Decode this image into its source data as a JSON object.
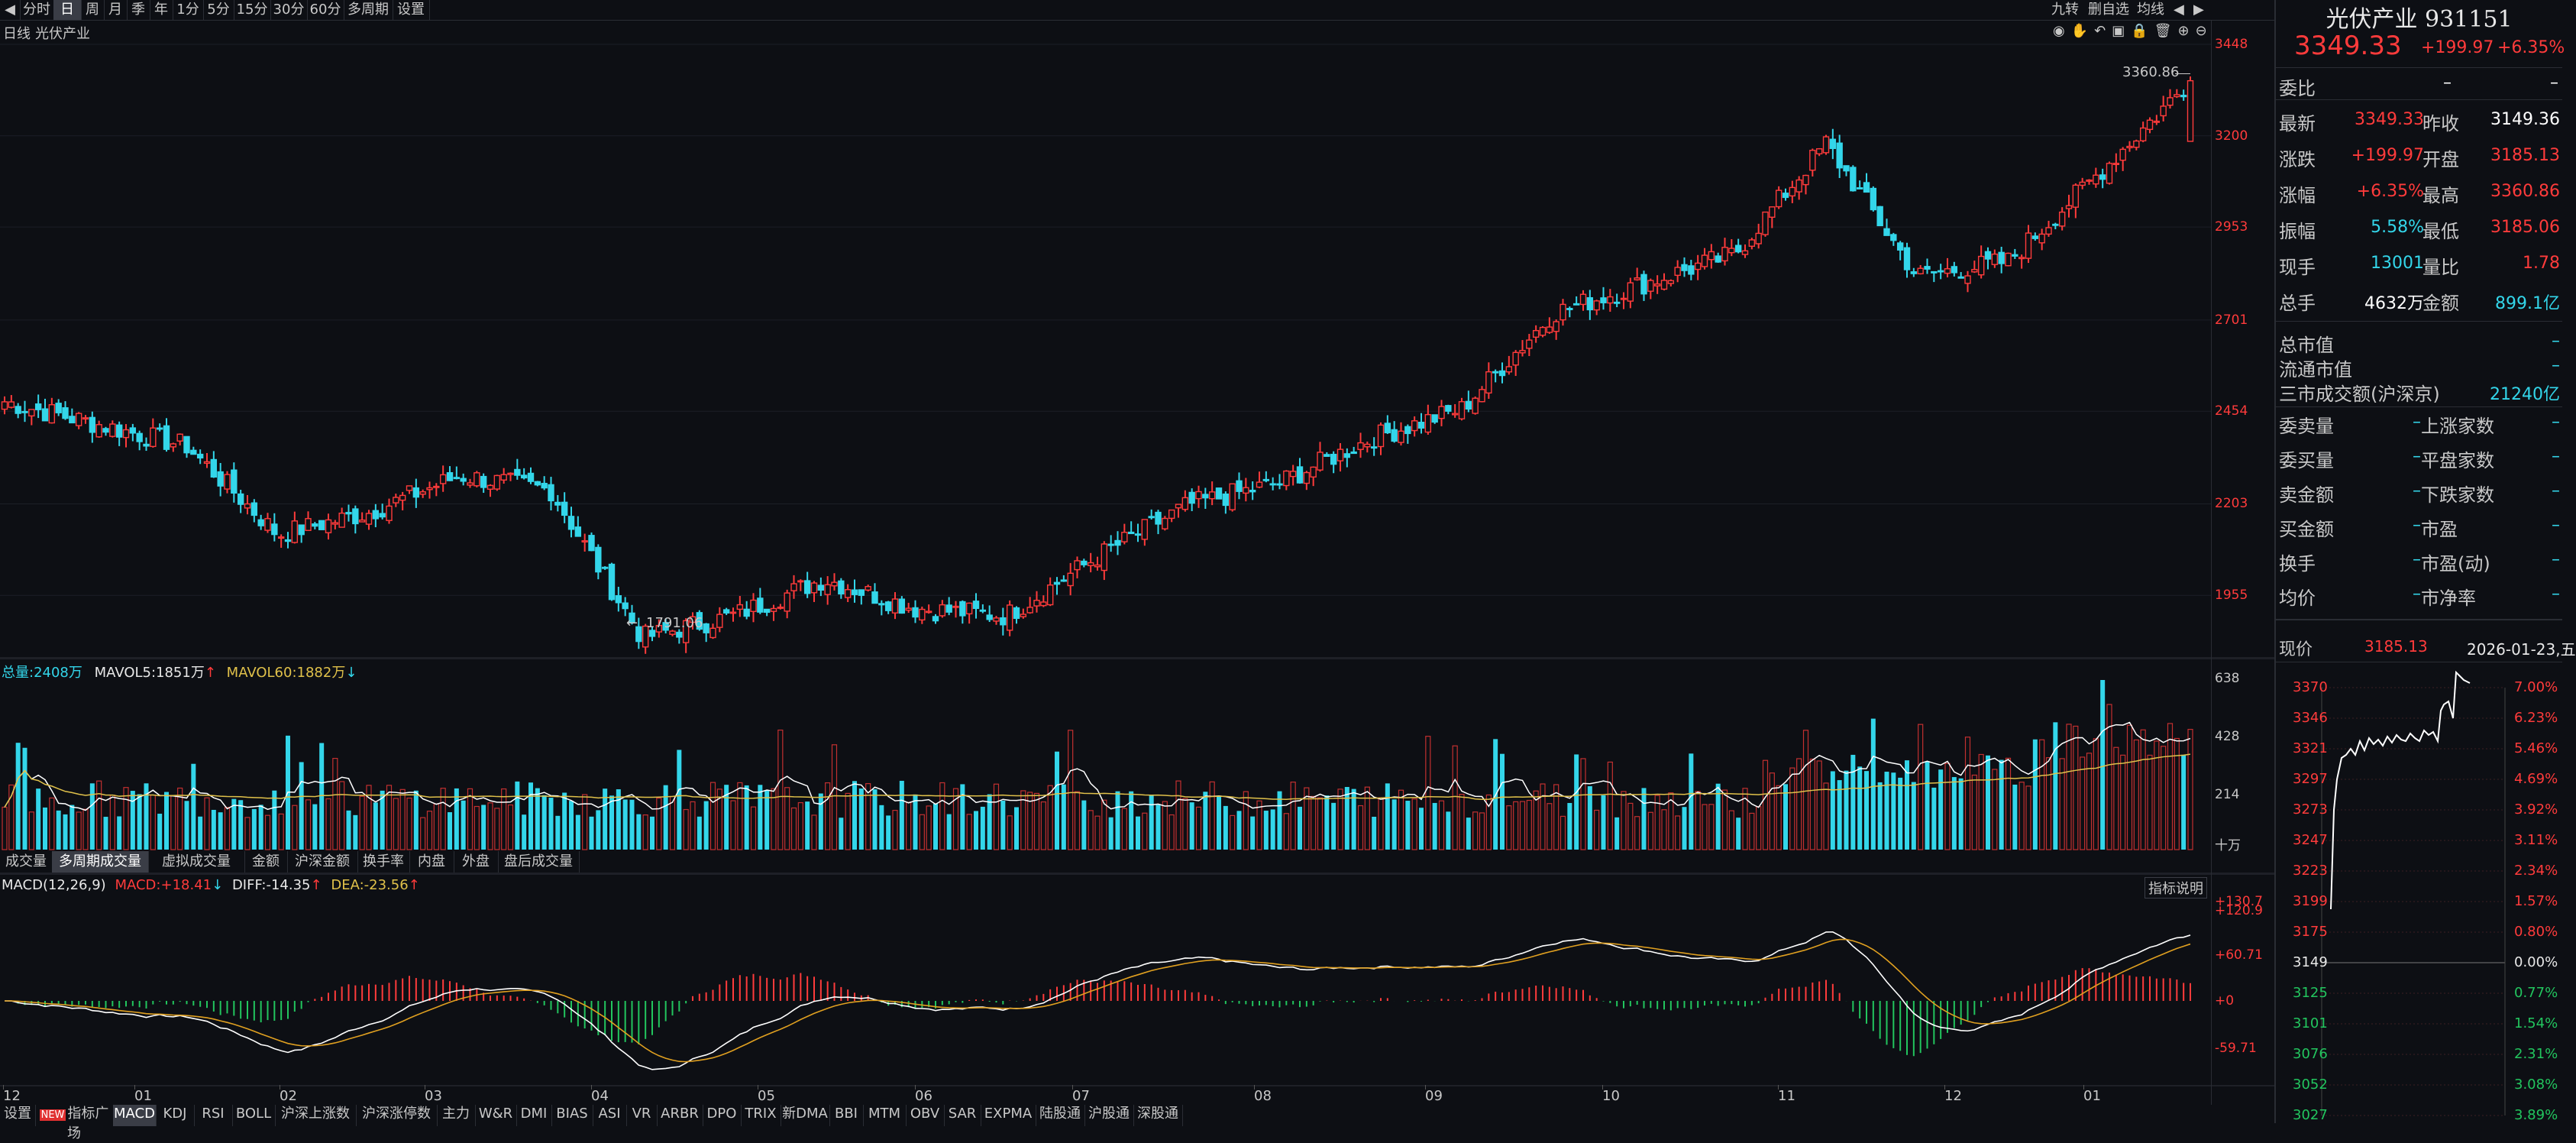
{
  "topbar": {
    "periods": [
      "分时",
      "日",
      "周",
      "月",
      "季",
      "年",
      "1分",
      "5分",
      "15分",
      "30分",
      "60分",
      "多周期",
      "设置"
    ],
    "active_period": "日",
    "right_items": [
      "九转",
      "删自选",
      "均线"
    ]
  },
  "chart": {
    "period_label": "日线",
    "name": "光伏产业",
    "max_annot": "3360.86",
    "min_annot": "1791.06",
    "price_ticks": [
      "3448",
      "3200",
      "2953",
      "2701",
      "2454",
      "2203",
      "1955"
    ],
    "volume_header": {
      "total_label": "总量:",
      "total_val": "2408万",
      "mavol5_label": "MAVOL5:",
      "mavol5_val": "1851万",
      "mavol60_label": "MAVOL60:",
      "mavol60_val": "1882万"
    },
    "volume_ticks": [
      "638",
      "428",
      "214"
    ],
    "volume_unit": "十万",
    "volume_tabs": [
      "成交量",
      "多周期成交量",
      "虚拟成交量",
      "金额",
      "沪深金额",
      "换手率",
      "内盘",
      "外盘",
      "盘后成交量"
    ],
    "volume_tab_active": "多周期成交量",
    "macd_header": {
      "title": "MACD(12,26,9)",
      "macd_label": "MACD:",
      "macd_val": "+18.41",
      "diff_label": "DIFF:",
      "diff_val": "-14.35",
      "dea_label": "DEA:",
      "dea_val": "-23.56"
    },
    "macd_help": "指标说明",
    "macd_ticks": [
      "+130.7",
      "+120.9",
      "+60.71",
      "+0",
      "-59.71"
    ],
    "months": [
      "12",
      "01",
      "02",
      "03",
      "04",
      "05",
      "06",
      "07",
      "08",
      "09",
      "10",
      "11",
      "12",
      "01"
    ],
    "indicator_tabs": [
      "设置",
      "指标广场",
      "MACD",
      "KDJ",
      "RSI",
      "BOLL",
      "沪深上涨数",
      "沪深涨停数",
      "主力",
      "W&R",
      "DMI",
      "BIAS",
      "ASI",
      "VR",
      "ARBR",
      "DPO",
      "TRIX",
      "新DMA",
      "BBI",
      "MTM",
      "OBV",
      "SAR",
      "EXPMA",
      "陆股通",
      "沪股通",
      "深股通"
    ],
    "indicator_active": "MACD",
    "new_badge": "NEW",
    "colors": {
      "up": "#ff3b3b",
      "down": "#33d6ea",
      "bg": "#0d0f14"
    }
  },
  "chart_data": {
    "type": "candlestick",
    "x": [
      "12",
      "01",
      "02",
      "03",
      "04",
      "05",
      "06",
      "07",
      "08",
      "09",
      "10",
      "11",
      "12",
      "01"
    ],
    "close_anchors": [
      2480,
      2420,
      2360,
      2120,
      2180,
      2280,
      2240,
      1840,
      1900,
      2000,
      1920,
      1900,
      2060,
      2200,
      2260,
      2380,
      2460,
      2720,
      2800,
      2880,
      3180,
      2820,
      2860,
      3100,
      3349
    ]
  },
  "quote": {
    "title": "光伏产业 931151",
    "price": "3349.33",
    "change": "+199.97",
    "change_pct": "+6.35%",
    "weibi_label": "委比",
    "weibi_val": "–",
    "weibi_val2": "–",
    "rows": [
      {
        "l1": "最新",
        "v1": "3349.33",
        "c1": "red",
        "l2": "昨收",
        "v2": "3149.36",
        "c2": "white"
      },
      {
        "l1": "涨跌",
        "v1": "+199.97",
        "c1": "red",
        "l2": "开盘",
        "v2": "3185.13",
        "c2": "red"
      },
      {
        "l1": "涨幅",
        "v1": "+6.35%",
        "c1": "red",
        "l2": "最高",
        "v2": "3360.86",
        "c2": "red"
      },
      {
        "l1": "振幅",
        "v1": "5.58%",
        "c1": "cyan",
        "l2": "最低",
        "v2": "3185.06",
        "c2": "red"
      },
      {
        "l1": "现手",
        "v1": "13001",
        "c1": "cyan",
        "l2": "量比",
        "v2": "1.78",
        "c2": "red"
      },
      {
        "l1": "总手",
        "v1": "4632万",
        "c1": "white",
        "l2": "金额",
        "v2": "899.1亿",
        "c2": "cyan"
      }
    ],
    "rows2": [
      {
        "l": "总市值",
        "v": "–",
        "c": "cyan"
      },
      {
        "l": "流通市值",
        "v": "–",
        "c": "cyan"
      },
      {
        "l": "三市成交额(沪深京)",
        "v": "21240亿",
        "c": "cyan"
      }
    ],
    "rows3": [
      {
        "l1": "委卖量",
        "v1": "–",
        "l2": "上涨家数",
        "v2": "–"
      },
      {
        "l1": "委买量",
        "v1": "–",
        "l2": "平盘家数",
        "v2": "–"
      },
      {
        "l1": "卖金额",
        "v1": "–",
        "l2": "下跌家数",
        "v2": "–"
      },
      {
        "l1": "买金额",
        "v1": "–",
        "l2": "市盈",
        "v2": "–"
      },
      {
        "l1": "换手",
        "v1": "–",
        "l2": "市盈(动)",
        "v2": "–"
      },
      {
        "l1": "均价",
        "v1": "–",
        "l2": "市净率",
        "v2": "–"
      }
    ],
    "now_label": "现价",
    "now_val": "3185.13",
    "date": "2026-01-23,五",
    "mini_left": [
      "3370",
      "3346",
      "3321",
      "3297",
      "3273",
      "3247",
      "3223",
      "3199",
      "3175",
      "3149",
      "3125",
      "3101",
      "3076",
      "3052",
      "3027"
    ],
    "mini_right": [
      "7.00%",
      "6.23%",
      "5.46%",
      "4.69%",
      "3.92%",
      "3.11%",
      "2.34%",
      "1.57%",
      "0.80%",
      "0.00%",
      "0.77%",
      "1.54%",
      "2.31%",
      "3.08%",
      "3.89%"
    ]
  }
}
